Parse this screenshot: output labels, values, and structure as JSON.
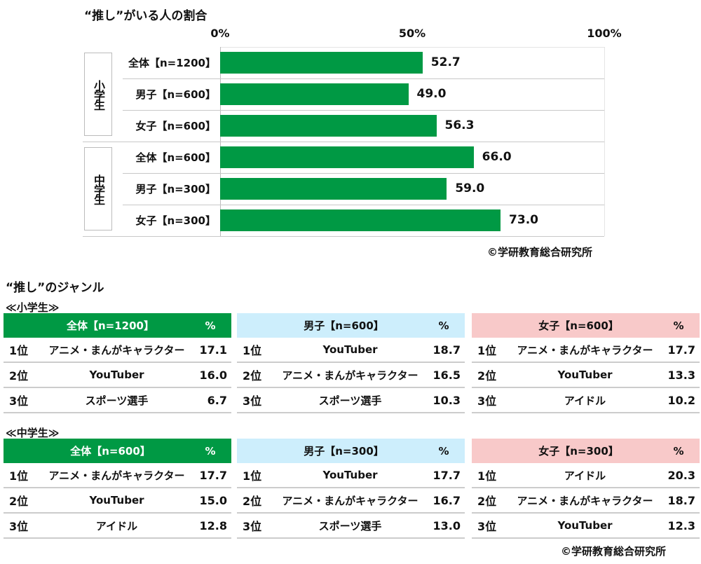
{
  "chart_data": {
    "type": "bar",
    "orientation": "horizontal",
    "title": "“推し”がいる人の割合",
    "xlim": [
      0,
      100
    ],
    "ticks": [
      "0%",
      "50%",
      "100%"
    ],
    "groups": [
      {
        "label": "小学生",
        "categories": [
          "全体【n=1200】",
          "男子【n=600】",
          "女子【n=600】"
        ],
        "values": [
          52.7,
          49.0,
          56.3
        ]
      },
      {
        "label": "中学生",
        "categories": [
          "全体【n=600】",
          "男子【n=300】",
          "女子【n=300】"
        ],
        "values": [
          66.0,
          59.0,
          73.0
        ]
      }
    ],
    "bar_color": "#009944",
    "credit": "©学研教育総合研究所"
  },
  "genre": {
    "title": "“推し”のジャンル",
    "pct_label": "%",
    "colors": {
      "all": "#009944",
      "boys": "#cdeefc",
      "girls": "#f8c9c9"
    },
    "sections": [
      {
        "label": "≪小学生≫",
        "panels": [
          {
            "header": "全体【n=1200】",
            "rows": [
              [
                "1位",
                "アニメ・まんがキャラクター",
                "17.1"
              ],
              [
                "2位",
                "YouTuber",
                "16.0"
              ],
              [
                "3位",
                "スポーツ選手",
                "6.7"
              ]
            ]
          },
          {
            "header": "男子【n=600】",
            "rows": [
              [
                "1位",
                "YouTuber",
                "18.7"
              ],
              [
                "2位",
                "アニメ・まんがキャラクター",
                "16.5"
              ],
              [
                "3位",
                "スポーツ選手",
                "10.3"
              ]
            ]
          },
          {
            "header": "女子【n=600】",
            "rows": [
              [
                "1位",
                "アニメ・まんがキャラクター",
                "17.7"
              ],
              [
                "2位",
                "YouTuber",
                "13.3"
              ],
              [
                "3位",
                "アイドル",
                "10.2"
              ]
            ]
          }
        ]
      },
      {
        "label": "≪中学生≫",
        "panels": [
          {
            "header": "全体【n=600】",
            "rows": [
              [
                "1位",
                "アニメ・まんがキャラクター",
                "17.7"
              ],
              [
                "2位",
                "YouTuber",
                "15.0"
              ],
              [
                "3位",
                "アイドル",
                "12.8"
              ]
            ]
          },
          {
            "header": "男子【n=300】",
            "rows": [
              [
                "1位",
                "YouTuber",
                "17.7"
              ],
              [
                "2位",
                "アニメ・まんがキャラクター",
                "16.7"
              ],
              [
                "3位",
                "スポーツ選手",
                "13.0"
              ]
            ]
          },
          {
            "header": "女子【n=300】",
            "rows": [
              [
                "1位",
                "アイドル",
                "20.3"
              ],
              [
                "2位",
                "アニメ・まんがキャラクター",
                "18.7"
              ],
              [
                "3位",
                "YouTuber",
                "12.3"
              ]
            ]
          }
        ]
      }
    ],
    "credit": "©学研教育総合研究所"
  }
}
